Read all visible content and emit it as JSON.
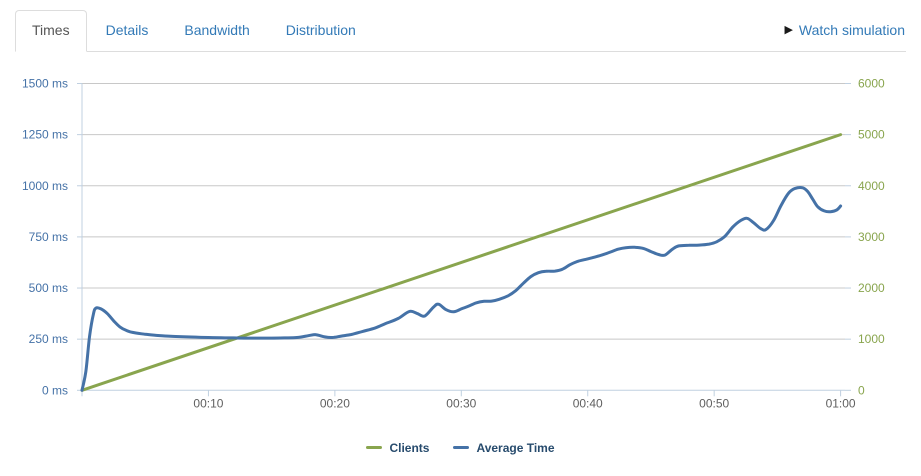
{
  "tabs": [
    {
      "label": "Times",
      "active": true
    },
    {
      "label": "Details",
      "active": false
    },
    {
      "label": "Bandwidth",
      "active": false
    },
    {
      "label": "Distribution",
      "active": false
    }
  ],
  "header": {
    "watch_label": "Watch simulation",
    "play_icon": "▶",
    "link_color": "#337ab7"
  },
  "chart_data": {
    "type": "line",
    "title": "",
    "grid": true,
    "legend_position": "bottom-center",
    "colors": {
      "gridline": "#c8c8c8",
      "axis_line": "#c0d0e0",
      "x_label": "#606060",
      "legend_text": "#274b6d"
    },
    "x_axis": {
      "unit": "time",
      "range_minutes": [
        0,
        60
      ],
      "tick_minutes": [
        10,
        20,
        30,
        40,
        50,
        60
      ],
      "tick_labels": [
        "00:10",
        "00:20",
        "00:30",
        "00:40",
        "00:50",
        "01:00"
      ]
    },
    "left_axis": {
      "title": "",
      "range": [
        0,
        1500
      ],
      "tick_values": [
        0,
        250,
        500,
        750,
        1000,
        1250,
        1500
      ],
      "tick_labels": [
        "0 ms",
        "250 ms",
        "500 ms",
        "750 ms",
        "1000 ms",
        "1250 ms",
        "1500 ms"
      ],
      "color": "#4572A7"
    },
    "right_axis": {
      "title": "",
      "range": [
        0,
        6000
      ],
      "tick_values": [
        0,
        1000,
        2000,
        3000,
        4000,
        5000,
        6000
      ],
      "tick_labels": [
        "0",
        "1000",
        "2000",
        "3000",
        "4000",
        "5000",
        "6000"
      ],
      "color": "#89A54E"
    },
    "series": [
      {
        "name": "Clients",
        "color": "#89A54E",
        "axis": "right",
        "points": [
          [
            0,
            0
          ],
          [
            60,
            5000
          ]
        ]
      },
      {
        "name": "Average Time",
        "color": "#4572A7",
        "axis": "left",
        "points": [
          [
            0,
            0
          ],
          [
            0.3,
            90
          ],
          [
            0.6,
            265
          ],
          [
            0.9,
            372
          ],
          [
            1.1,
            402
          ],
          [
            1.5,
            398
          ],
          [
            2,
            375
          ],
          [
            2.5,
            340
          ],
          [
            3,
            310
          ],
          [
            3.5,
            293
          ],
          [
            4,
            283
          ],
          [
            5,
            274
          ],
          [
            6,
            268
          ],
          [
            7,
            264
          ],
          [
            8,
            262
          ],
          [
            9,
            260
          ],
          [
            10,
            258
          ],
          [
            11,
            257
          ],
          [
            12,
            256
          ],
          [
            13,
            255
          ],
          [
            14,
            255
          ],
          [
            15,
            255
          ],
          [
            16,
            256
          ],
          [
            17,
            258
          ],
          [
            17.9,
            267
          ],
          [
            18.5,
            272
          ],
          [
            19.2,
            261
          ],
          [
            19.8,
            258
          ],
          [
            20.5,
            265
          ],
          [
            21.3,
            273
          ],
          [
            22.2,
            288
          ],
          [
            23.2,
            305
          ],
          [
            24,
            326
          ],
          [
            25,
            351
          ],
          [
            25.9,
            386
          ],
          [
            26.5,
            376
          ],
          [
            27.1,
            363
          ],
          [
            27.8,
            407
          ],
          [
            28.2,
            421
          ],
          [
            28.8,
            394
          ],
          [
            29.4,
            384
          ],
          [
            30,
            398
          ],
          [
            30.6,
            412
          ],
          [
            31.2,
            428
          ],
          [
            31.8,
            435
          ],
          [
            32.4,
            436
          ],
          [
            33,
            445
          ],
          [
            33.7,
            462
          ],
          [
            34.3,
            487
          ],
          [
            34.9,
            523
          ],
          [
            35.5,
            556
          ],
          [
            36.1,
            575
          ],
          [
            36.7,
            582
          ],
          [
            37.4,
            583
          ],
          [
            38,
            592
          ],
          [
            38.6,
            614
          ],
          [
            39.2,
            630
          ],
          [
            39.9,
            641
          ],
          [
            40.6,
            652
          ],
          [
            41.2,
            663
          ],
          [
            41.8,
            676
          ],
          [
            42.4,
            690
          ],
          [
            43,
            697
          ],
          [
            43.7,
            699
          ],
          [
            44.4,
            694
          ],
          [
            45,
            678
          ],
          [
            45.6,
            664
          ],
          [
            46.1,
            661
          ],
          [
            46.7,
            690
          ],
          [
            47.2,
            706
          ],
          [
            48,
            709
          ],
          [
            48.8,
            710
          ],
          [
            49.6,
            715
          ],
          [
            50.2,
            726
          ],
          [
            50.8,
            750
          ],
          [
            51.5,
            800
          ],
          [
            52.1,
            830
          ],
          [
            52.6,
            841
          ],
          [
            53.1,
            820
          ],
          [
            53.7,
            790
          ],
          [
            54.1,
            786
          ],
          [
            54.7,
            830
          ],
          [
            55.3,
            905
          ],
          [
            55.9,
            965
          ],
          [
            56.4,
            987
          ],
          [
            57,
            990
          ],
          [
            57.4,
            972
          ],
          [
            57.8,
            934
          ],
          [
            58.2,
            897
          ],
          [
            58.7,
            877
          ],
          [
            59.2,
            873
          ],
          [
            59.7,
            882
          ],
          [
            60,
            901
          ]
        ]
      }
    ]
  }
}
